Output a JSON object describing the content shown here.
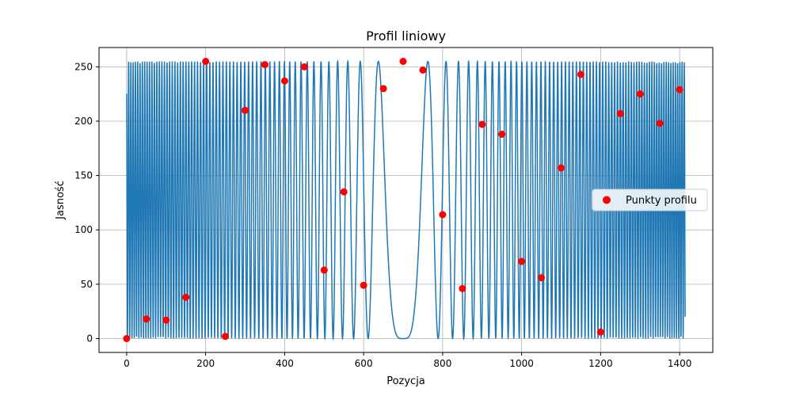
{
  "chart_data": {
    "type": "line",
    "title": "Profil liniowy",
    "xlabel": "Pozycja",
    "ylabel": "Jasność",
    "xlim": [
      -70,
      1484
    ],
    "ylim": [
      -12.75,
      267.75
    ],
    "xticks": [
      0,
      200,
      400,
      600,
      800,
      1000,
      1200,
      1400
    ],
    "yticks": [
      0,
      50,
      100,
      150,
      200,
      250
    ],
    "grid": true,
    "legend_position": "center-right",
    "colors": {
      "line": "#1f77b4",
      "points": "#ff0000"
    },
    "line_series": {
      "description_formula": "127.5 * (1 - cos(0.0008 * (x - 700)^2))",
      "x_range": [
        0,
        1414
      ],
      "peak_value": 255
    },
    "series": [
      {
        "name": "Punkty profilu",
        "x": [
          0,
          50,
          100,
          150,
          200,
          250,
          300,
          350,
          400,
          450,
          500,
          550,
          600,
          650,
          700,
          750,
          800,
          850,
          900,
          950,
          1000,
          1050,
          1100,
          1150,
          1200,
          1250,
          1300,
          1350,
          1400
        ],
        "y": [
          0,
          18,
          17,
          38,
          255,
          2,
          210,
          252,
          237,
          250,
          63,
          135,
          49,
          230,
          255,
          247,
          114,
          46,
          197,
          188,
          71,
          56,
          157,
          243,
          6,
          207,
          225,
          198,
          229
        ]
      }
    ],
    "legend_label": "Punkty profilu"
  }
}
